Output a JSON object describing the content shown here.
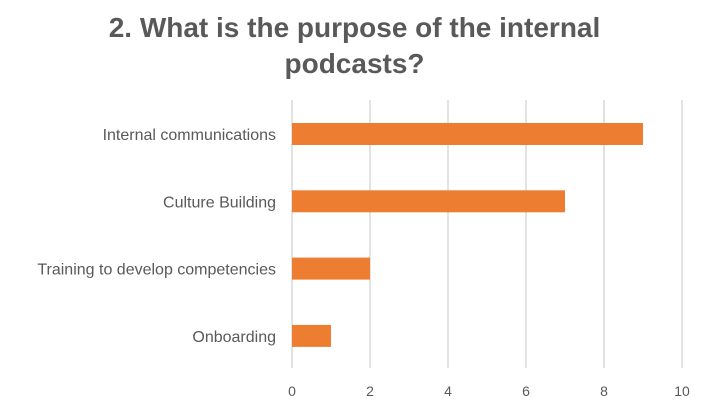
{
  "chart_data": {
    "type": "bar",
    "orientation": "horizontal",
    "title_lines": [
      "2. What is the purpose of the internal",
      "podcasts?"
    ],
    "categories": [
      "Internal communications",
      "Culture Building",
      "Training to develop competencies",
      "Onboarding"
    ],
    "values": [
      9,
      7,
      2,
      1
    ],
    "xlim": [
      0,
      10
    ],
    "xticks": [
      "0",
      "2",
      "4",
      "6",
      "8",
      "10"
    ],
    "grid": true,
    "legend": "none",
    "bar_color": "#ED7D31",
    "grid_color": "#D9D9D9",
    "text_color": "#595959"
  }
}
